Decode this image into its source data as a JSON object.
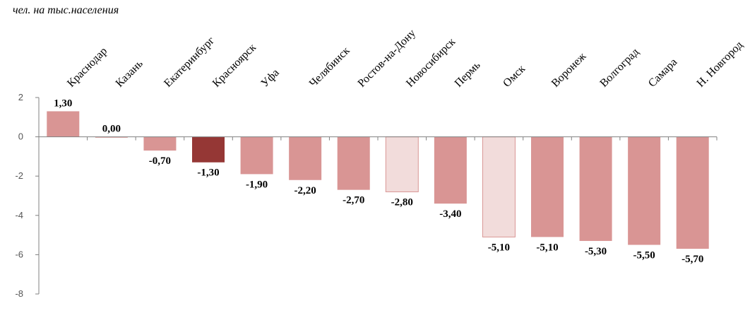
{
  "unit_label": "чел. на тыс.населения",
  "chart_data": {
    "type": "bar",
    "ylabel": "чел. на тыс.населения",
    "ylim": [
      -8,
      2
    ],
    "yticks": [
      2,
      0,
      -2,
      -4,
      -6,
      -8
    ],
    "grid": false,
    "legend": "none",
    "categories": [
      "Краснодар",
      "Казань",
      "Екатеринбург",
      "Красноярск",
      "Уфа",
      "Челябинск",
      "Ростов-на-Дону",
      "Новосибирск",
      "Пермь",
      "Омск",
      "Воронеж",
      "Волгоград",
      "Самара",
      "Н. Новгород"
    ],
    "values": [
      1.3,
      0.0,
      -0.7,
      -1.3,
      -1.9,
      -2.2,
      -2.7,
      -2.8,
      -3.4,
      -5.1,
      -5.1,
      -5.3,
      -5.5,
      -5.7
    ],
    "value_labels": [
      "1,30",
      "0,00",
      "-0,70",
      "-1,30",
      "-1,90",
      "-2,20",
      "-2,70",
      "-2,80",
      "-3,40",
      "-5,10",
      "-5,10",
      "-5,30",
      "-5,50",
      "-5,70"
    ],
    "bar_colors": [
      "#d99594",
      "#d99594",
      "#d99594",
      "#953735",
      "#d99594",
      "#d99594",
      "#d99594",
      "#f2dcdb",
      "#d99594",
      "#f2dcdb",
      "#d99594",
      "#d99594",
      "#d99594",
      "#d99594"
    ],
    "colors": {
      "default": "#d99594",
      "highlight": "#953735",
      "light": "#f2dcdb",
      "axis": "#808080"
    }
  }
}
